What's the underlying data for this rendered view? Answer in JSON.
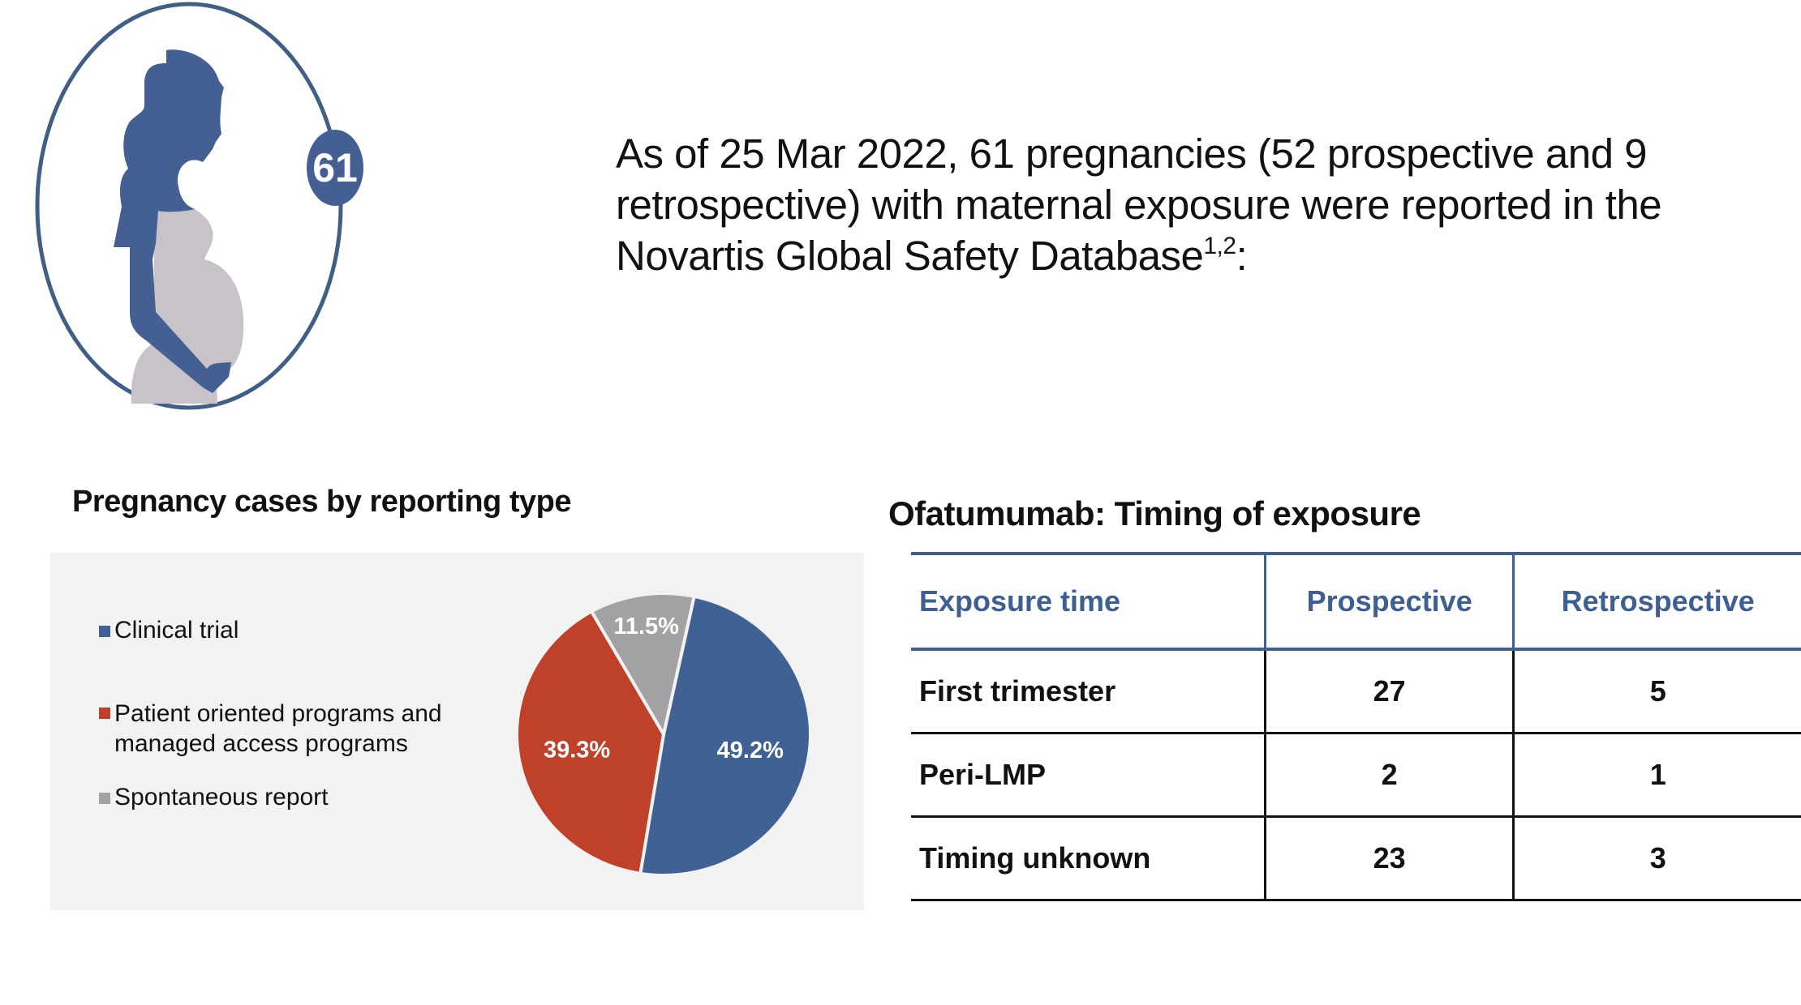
{
  "badge": {
    "count": "61"
  },
  "intro": {
    "text": "As of 25 Mar 2022, 61 pregnancies (52 prospective and 9 retrospective) with maternal exposure were reported in the Novartis Global Safety Database",
    "superscript": "1,2",
    "suffix": ":"
  },
  "colors": {
    "blue": "#3f6194",
    "red": "#bf4129",
    "gray": "#a3a1a3",
    "panel": "#f2f2f2",
    "figure_body": "#c7c3c9"
  },
  "chart_data": {
    "type": "pie",
    "title": "Pregnancy cases by reporting type",
    "legend_position": "left",
    "series": [
      {
        "name": "Clinical trial",
        "value": 49.2,
        "label": "49.2%",
        "color": "#3f6194"
      },
      {
        "name": "Patient oriented programs and managed access programs",
        "value": 39.3,
        "label": "39.3%",
        "color": "#bf4129"
      },
      {
        "name": "Spontaneous report",
        "value": 11.5,
        "label": "11.5%",
        "color": "#a3a1a3"
      }
    ]
  },
  "table": {
    "title": "Ofatumumab: Timing of exposure",
    "headers": [
      "Exposure time",
      "Prospective",
      "Retrospective"
    ],
    "rows": [
      [
        "First trimester",
        "27",
        "5"
      ],
      [
        "Peri-LMP",
        "2",
        "1"
      ],
      [
        "Timing unknown",
        "23",
        "3"
      ]
    ]
  }
}
